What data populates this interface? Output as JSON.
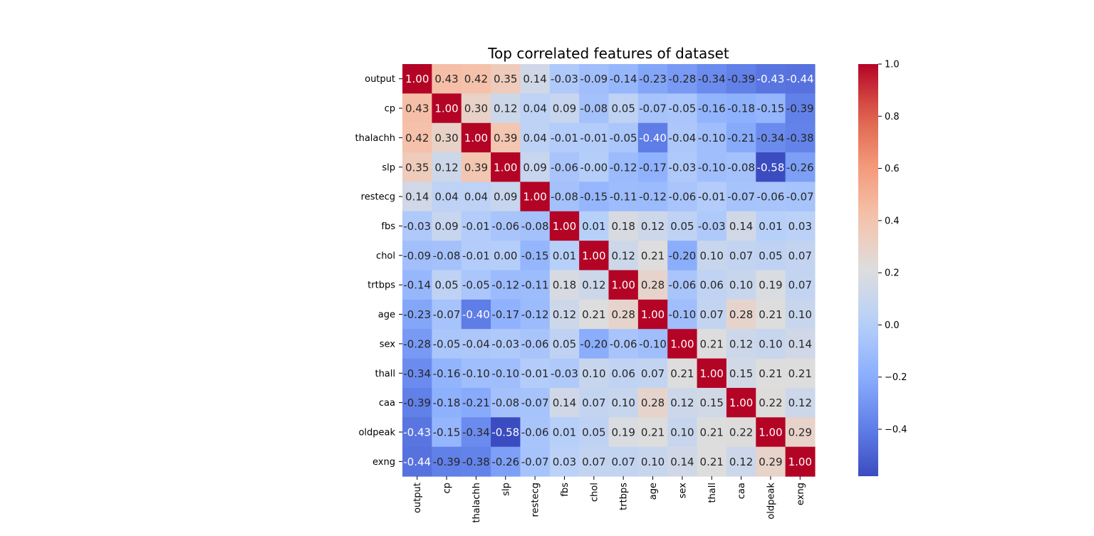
{
  "chart_data": {
    "type": "heatmap",
    "title": "Top correlated features of dataset",
    "xlabels": [
      "output",
      "cp",
      "thalachh",
      "slp",
      "restecg",
      "fbs",
      "chol",
      "trtbps",
      "age",
      "sex",
      "thall",
      "caa",
      "oldpeak",
      "exng"
    ],
    "ylabels": [
      "output",
      "cp",
      "thalachh",
      "slp",
      "restecg",
      "fbs",
      "chol",
      "trtbps",
      "age",
      "sex",
      "thall",
      "caa",
      "oldpeak",
      "exng"
    ],
    "values": [
      [
        1.0,
        0.43,
        0.42,
        0.35,
        0.14,
        -0.03,
        -0.09,
        -0.14,
        -0.23,
        -0.28,
        -0.34,
        -0.39,
        -0.43,
        -0.44
      ],
      [
        0.43,
        1.0,
        0.3,
        0.12,
        0.04,
        0.09,
        -0.08,
        0.05,
        -0.07,
        -0.05,
        -0.16,
        -0.18,
        -0.15,
        -0.39
      ],
      [
        0.42,
        0.3,
        1.0,
        0.39,
        0.04,
        -0.01,
        -0.01,
        -0.05,
        -0.4,
        -0.04,
        -0.1,
        -0.21,
        -0.34,
        -0.38
      ],
      [
        0.35,
        0.12,
        0.39,
        1.0,
        0.09,
        -0.06,
        -0.0,
        -0.12,
        -0.17,
        -0.03,
        -0.1,
        -0.08,
        -0.58,
        -0.26
      ],
      [
        0.14,
        0.04,
        0.04,
        0.09,
        1.0,
        -0.08,
        -0.15,
        -0.11,
        -0.12,
        -0.06,
        -0.01,
        -0.07,
        -0.06,
        -0.07
      ],
      [
        -0.03,
        0.09,
        -0.01,
        -0.06,
        -0.08,
        1.0,
        0.01,
        0.18,
        0.12,
        0.05,
        -0.03,
        0.14,
        0.01,
        0.03
      ],
      [
        -0.09,
        -0.08,
        -0.01,
        -0.0,
        -0.15,
        0.01,
        1.0,
        0.12,
        0.21,
        -0.2,
        0.1,
        0.07,
        0.05,
        0.07
      ],
      [
        -0.14,
        0.05,
        -0.05,
        -0.12,
        -0.11,
        0.18,
        0.12,
        1.0,
        0.28,
        -0.06,
        0.06,
        0.1,
        0.19,
        0.07
      ],
      [
        -0.23,
        -0.07,
        -0.4,
        -0.17,
        -0.12,
        0.12,
        0.21,
        0.28,
        1.0,
        -0.1,
        0.07,
        0.28,
        0.21,
        0.1
      ],
      [
        -0.28,
        -0.05,
        -0.04,
        -0.03,
        -0.06,
        0.05,
        -0.2,
        -0.06,
        -0.1,
        1.0,
        0.21,
        0.12,
        0.1,
        0.14
      ],
      [
        -0.34,
        -0.16,
        -0.1,
        -0.1,
        -0.01,
        -0.03,
        0.1,
        0.06,
        0.07,
        0.21,
        1.0,
        0.15,
        0.21,
        0.21
      ],
      [
        -0.39,
        -0.18,
        -0.21,
        -0.08,
        -0.07,
        0.14,
        0.07,
        0.1,
        0.28,
        0.12,
        0.15,
        1.0,
        0.22,
        0.12
      ],
      [
        -0.43,
        -0.15,
        -0.34,
        -0.58,
        -0.06,
        0.01,
        0.05,
        0.19,
        0.21,
        0.1,
        0.21,
        0.22,
        1.0,
        0.29
      ],
      [
        -0.44,
        -0.39,
        -0.38,
        -0.26,
        -0.07,
        0.03,
        0.07,
        0.07,
        0.1,
        0.14,
        0.21,
        0.12,
        0.29,
        1.0
      ]
    ],
    "colormap": "coolwarm",
    "vmin": -0.58,
    "vmax": 1.0,
    "colorbar_ticks": [
      1.0,
      0.8,
      0.6,
      0.4,
      0.2,
      0.0,
      -0.2,
      -0.4
    ],
    "colorbar_tick_labels": [
      "1.0",
      "0.8",
      "0.6",
      "0.4",
      "0.2",
      "0.0",
      "−0.2",
      "−0.4"
    ],
    "annotations_format": "2 decimals"
  }
}
